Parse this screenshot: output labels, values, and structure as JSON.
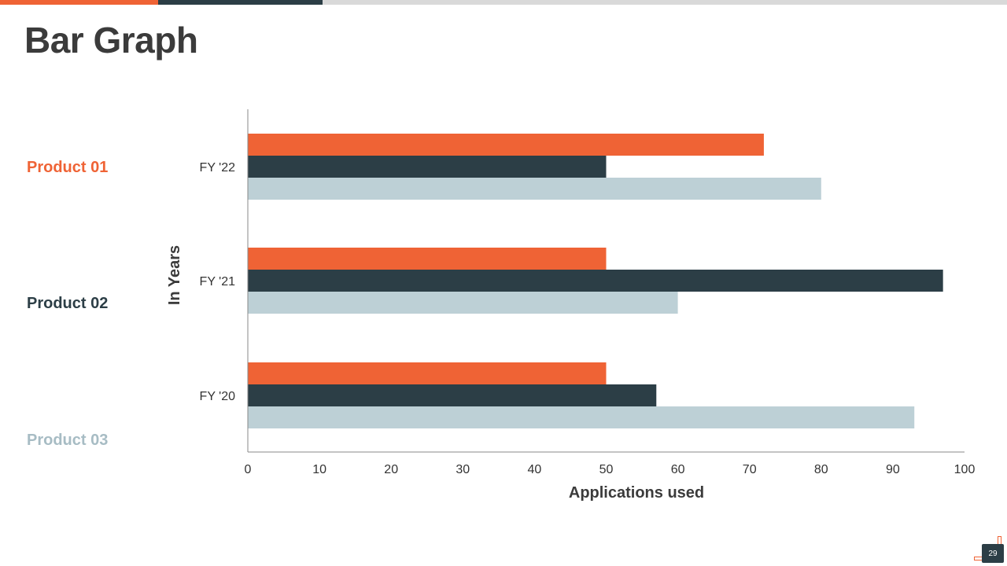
{
  "slide": {
    "title": "Bar Graph",
    "page_number": "29",
    "accent_colors": [
      "#ef6335",
      "#2c3e46",
      "#d9d9d9"
    ]
  },
  "legend": {
    "items": [
      {
        "label": "Product 01",
        "color": "#ef6335"
      },
      {
        "label": "Product 02",
        "color": "#2c3e46"
      },
      {
        "label": "Product 03",
        "color": "#a7bcc4"
      }
    ]
  },
  "chart_data": {
    "type": "bar",
    "orientation": "horizontal",
    "categories": [
      "FY '22",
      "FY '21",
      "FY '20"
    ],
    "series": [
      {
        "name": "Product 01",
        "color": "#ef6335",
        "values": [
          72,
          50,
          50
        ]
      },
      {
        "name": "Product 02",
        "color": "#2c3e46",
        "values": [
          50,
          97,
          57
        ]
      },
      {
        "name": "Product 03",
        "color": "#bdd0d6",
        "values": [
          80,
          60,
          93
        ]
      }
    ],
    "xlabel": "Applications used",
    "ylabel": "In Years",
    "xlim": [
      0,
      100
    ],
    "xticks": [
      0,
      10,
      20,
      30,
      40,
      50,
      60,
      70,
      80,
      90,
      100
    ],
    "grid": false,
    "legend_position": "left"
  }
}
